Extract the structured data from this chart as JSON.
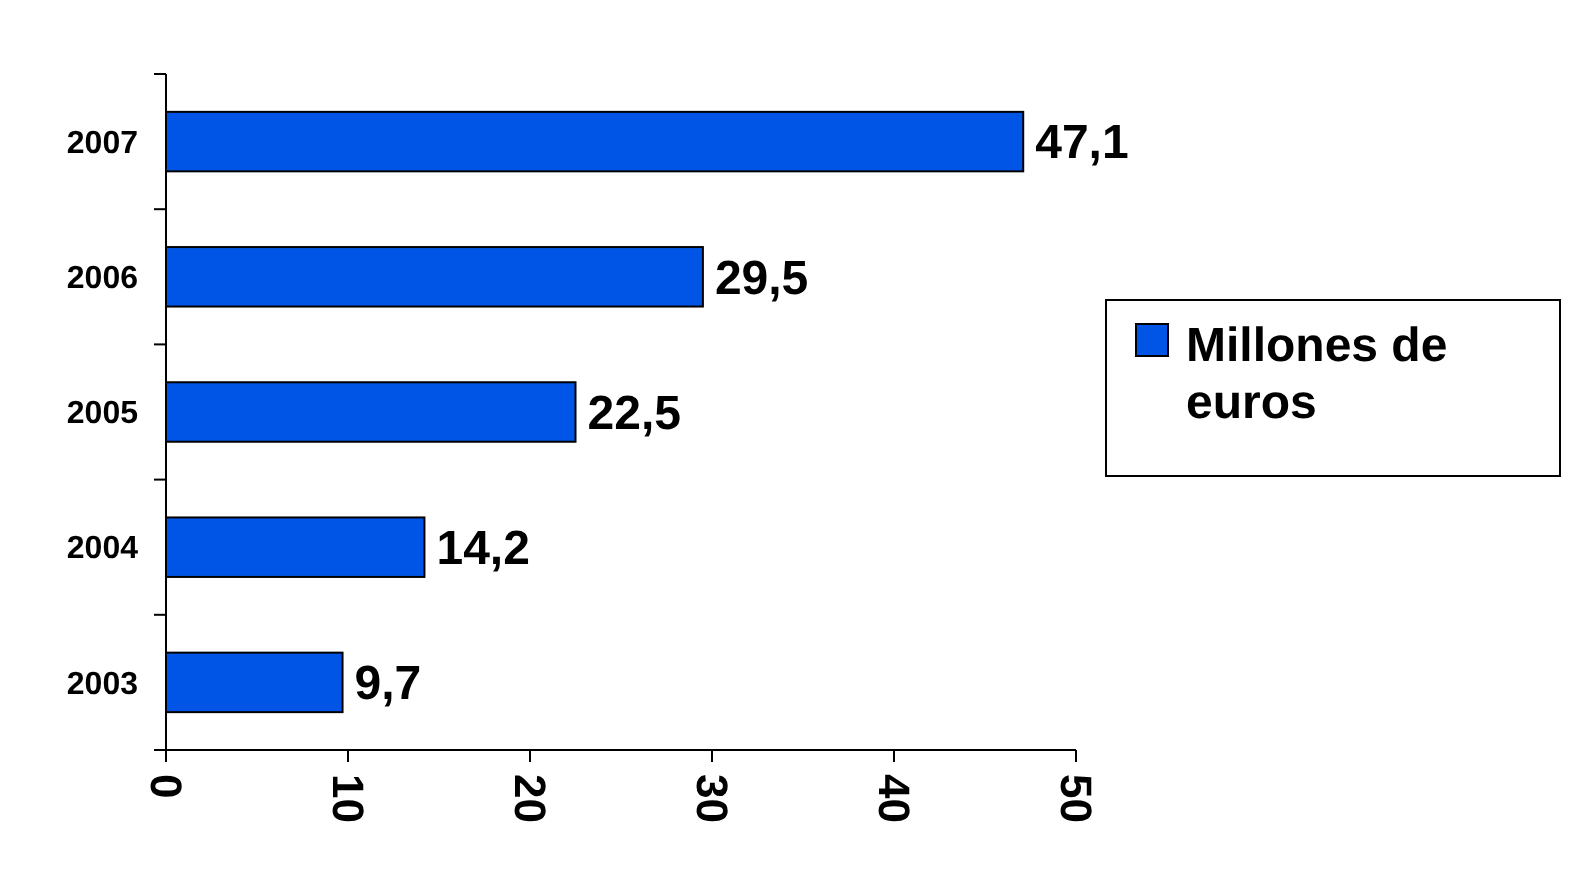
{
  "chart_data": {
    "type": "bar",
    "orientation": "horizontal",
    "categories": [
      "2007",
      "2006",
      "2005",
      "2004",
      "2003"
    ],
    "series": [
      {
        "name": "Millones de euros",
        "color": "#0055e6",
        "values": [
          47.1,
          29.5,
          22.5,
          14.2,
          9.7
        ],
        "value_labels": [
          "47,1",
          "29,5",
          "22,5",
          "14,2",
          "9,7"
        ]
      }
    ],
    "xlim": [
      0,
      50
    ],
    "xticks": [
      0,
      10,
      20,
      30,
      40,
      50
    ],
    "legend": "right"
  }
}
